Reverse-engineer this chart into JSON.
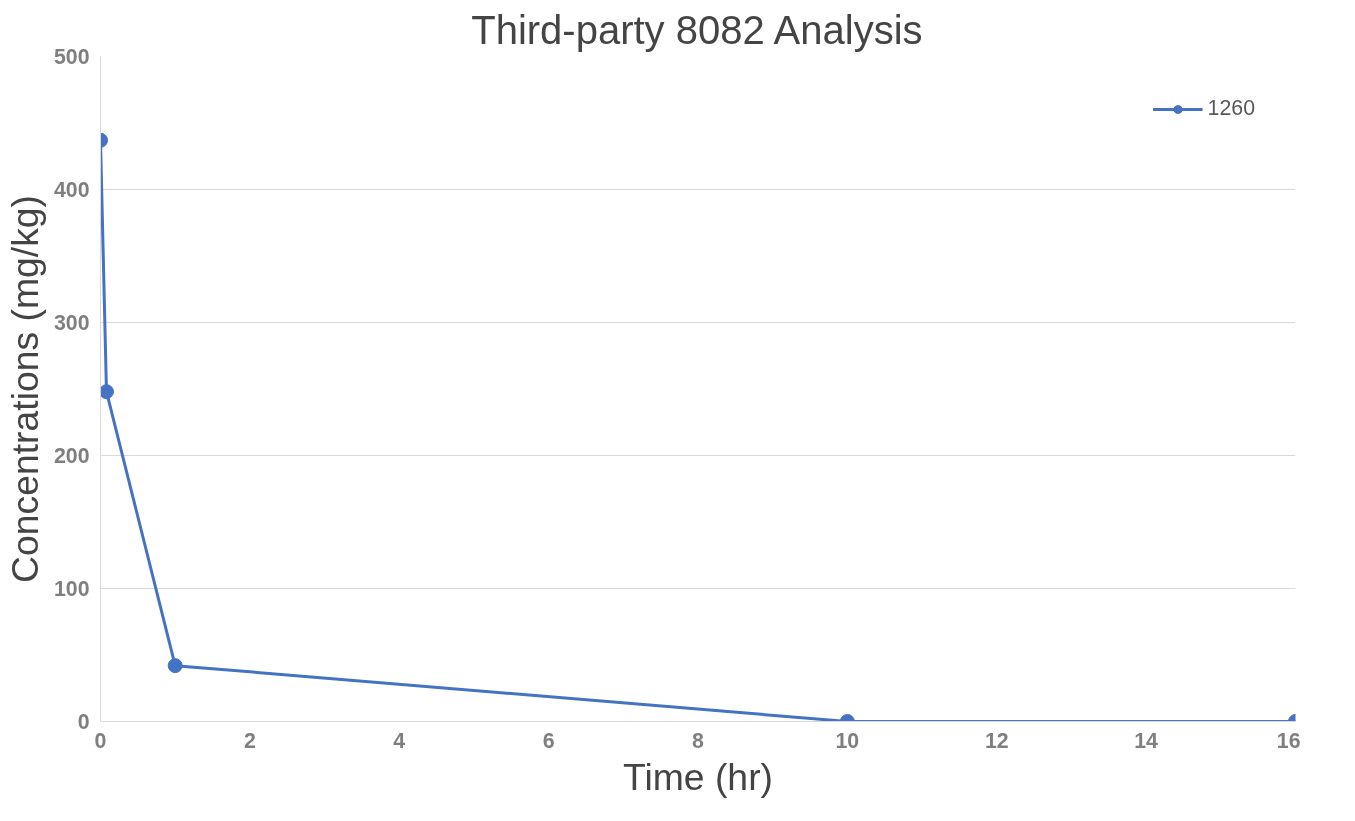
{
  "chart_data": {
    "type": "line",
    "title": "Third-party 8082 Analysis",
    "xlabel": "Time (hr)",
    "ylabel": "Concentrations (mg/kg)",
    "x": [
      0,
      0.08,
      1,
      10,
      16
    ],
    "series": [
      {
        "name": "1260",
        "color": "#4472c4",
        "values": [
          437,
          248,
          42,
          0,
          0
        ]
      }
    ],
    "xlim": [
      0,
      16
    ],
    "xticks": [
      0,
      2,
      4,
      6,
      8,
      10,
      12,
      14,
      16
    ],
    "ylim": [
      0,
      500
    ],
    "yticks": [
      0,
      100,
      200,
      300,
      400,
      500
    ],
    "grid": "y",
    "legend": "top right",
    "marker": "circle",
    "line_style": "solid"
  }
}
